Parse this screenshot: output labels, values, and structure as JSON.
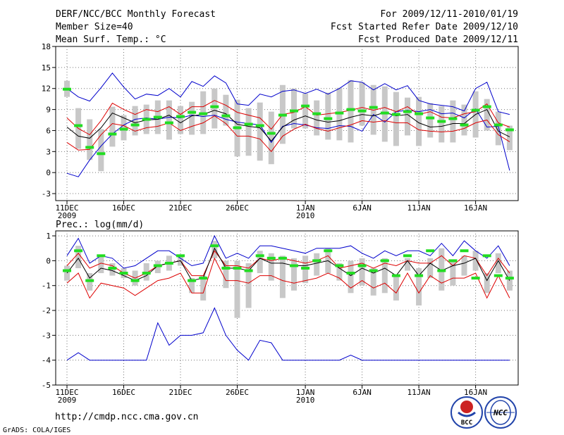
{
  "header": {
    "title": "DERF/NCC/BCC Monthly Forecast",
    "member": "Member Size=40",
    "variable1": "Mean Surf. Temp.: °C",
    "period": "For 2009/12/11-2010/01/19",
    "started": "Fcst Started Refer Date 2009/12/10",
    "produced": "Fcst Produced Date 2009/12/11"
  },
  "footer": {
    "url": "http://cmdp.ncc.cma.gov.cn",
    "credit": "GrADS: COLA/IGES",
    "logo_bcc": "BCC",
    "logo_ncc": "NCC"
  },
  "colors": {
    "box": "#c8c8c8",
    "median": "#22dd22",
    "mean": "#000000",
    "sd": "#dd0000",
    "extreme": "#0000cc",
    "grid": "#777777"
  },
  "chart_data": [
    {
      "type": "line",
      "title": "Mean Surf. Temp.: °C",
      "xlabel": "",
      "ylabel": "°C",
      "ylim": [
        -4,
        18
      ],
      "yticks": [
        -3,
        0,
        3,
        6,
        9,
        12,
        15,
        18
      ],
      "x_days": [
        1,
        2,
        3,
        4,
        5,
        6,
        7,
        8,
        9,
        10,
        11,
        12,
        13,
        14,
        15,
        16,
        17,
        18,
        19,
        20,
        21,
        22,
        23,
        24,
        25,
        26,
        27,
        28,
        29,
        30,
        31,
        32,
        33,
        34,
        35,
        36,
        37,
        38,
        39,
        40
      ],
      "xticks": [
        {
          "day": 1,
          "label": "11DEC",
          "label2": "2009"
        },
        {
          "day": 6,
          "label": "16DEC"
        },
        {
          "day": 11,
          "label": "21DEC"
        },
        {
          "day": 16,
          "label": "26DEC"
        },
        {
          "day": 22,
          "label": "1JAN",
          "label2": "2010"
        },
        {
          "day": 27,
          "label": "6JAN"
        },
        {
          "day": 32,
          "label": "11JAN"
        },
        {
          "day": 37,
          "label": "16JAN"
        }
      ],
      "series": [
        {
          "name": "max",
          "values": [
            -0.1,
            -0.6,
            1.8,
            3.8,
            5.5,
            6.8,
            7.6,
            7.8,
            7.6,
            7.9,
            7.8,
            8.2,
            8.0,
            8.2,
            7.6,
            7.2,
            7.0,
            6.8,
            4.3,
            6.6,
            7.0,
            6.8,
            6.4,
            6.3,
            6.7,
            6.6,
            5.9,
            8.3,
            7.2,
            8.7,
            8.9,
            8.7,
            9.0,
            8.4,
            8.5,
            7.8,
            9.1,
            6.5,
            6.6,
            0.3
          ]
        },
        {
          "name": "mean+sd",
          "values": [
            7.8,
            6.3,
            5.4,
            7.4,
            9.9,
            9.0,
            8.3,
            9.0,
            8.7,
            9.4,
            8.3,
            9.4,
            9.4,
            10.3,
            9.6,
            8.6,
            8.2,
            7.8,
            6.2,
            8.3,
            8.6,
            9.4,
            8.2,
            8.4,
            8.6,
            8.9,
            9.3,
            8.9,
            9.3,
            8.7,
            9.4,
            8.3,
            8.7,
            7.9,
            7.8,
            8.4,
            8.7,
            9.8,
            7.1,
            6.5
          ]
        },
        {
          "name": "mean",
          "values": [
            6.5,
            5.2,
            4.9,
            6.4,
            8.5,
            7.8,
            7.1,
            7.5,
            7.6,
            8.2,
            7.1,
            8.1,
            8.3,
            8.9,
            8.4,
            6.9,
            6.6,
            6.4,
            4.5,
            6.5,
            7.5,
            8.1,
            7.5,
            7.2,
            7.4,
            7.9,
            8.3,
            8.1,
            8.6,
            8.1,
            8.3,
            7.1,
            6.5,
            6.6,
            7.0,
            7.0,
            8.3,
            9.0,
            5.9,
            5.1
          ]
        },
        {
          "name": "mean-sd",
          "values": [
            4.3,
            3.2,
            3.3,
            5.4,
            7.0,
            6.7,
            5.9,
            6.4,
            6.6,
            7.1,
            6.0,
            6.6,
            7.1,
            8.1,
            7.0,
            5.2,
            5.2,
            4.8,
            3.0,
            5.2,
            6.2,
            6.9,
            6.3,
            5.9,
            6.4,
            6.8,
            7.4,
            7.2,
            7.4,
            7.1,
            7.1,
            6.1,
            5.9,
            5.8,
            5.9,
            6.3,
            7.1,
            7.5,
            5.4,
            4.4
          ]
        },
        {
          "name": "min",
          "values": [
            12.0,
            10.8,
            10.2,
            12.1,
            14.2,
            12.2,
            10.5,
            11.2,
            11.0,
            12.0,
            10.8,
            13.0,
            12.3,
            13.8,
            12.8,
            9.8,
            9.6,
            11.2,
            10.8,
            11.6,
            11.8,
            11.3,
            11.9,
            11.2,
            12.0,
            13.1,
            12.9,
            11.8,
            12.7,
            11.8,
            12.4,
            10.3,
            9.8,
            9.6,
            9.4,
            8.8,
            12.0,
            12.9,
            8.7,
            8.3
          ]
        }
      ],
      "series_notes": "max/min drawn as blue envelope lines (values approximate)",
      "boxes_low": [
        10.8,
        3.4,
        1.8,
        0.2,
        3.7,
        4.6,
        5.3,
        5.5,
        5.5,
        4.7,
        5.5,
        5.4,
        5.5,
        6.3,
        6.7,
        2.3,
        2.4,
        1.7,
        1.2,
        4.1,
        6.3,
        6.3,
        5.3,
        4.7,
        4.6,
        4.3,
        6.7,
        5.4,
        4.4,
        3.8,
        5.3,
        3.8,
        5.0,
        4.3,
        4.3,
        5.3,
        5.0,
        6.0,
        3.9,
        3.2
      ],
      "boxes_high": [
        13.1,
        9.2,
        7.6,
        6.2,
        9.4,
        8.2,
        9.5,
        9.7,
        10.3,
        10.3,
        9.5,
        10.1,
        11.6,
        12.0,
        11.1,
        10.4,
        9.2,
        10.0,
        8.7,
        12.5,
        12.0,
        11.3,
        10.3,
        11.4,
        12.1,
        13.2,
        12.9,
        12.5,
        12.3,
        11.5,
        10.7,
        10.8,
        9.9,
        9.5,
        10.3,
        9.7,
        11.6,
        10.5,
        8.7,
        6.7
      ],
      "medians": [
        11.9,
        6.7,
        3.6,
        2.7,
        5.5,
        6.2,
        6.8,
        7.6,
        7.9,
        7.1,
        8.0,
        8.6,
        8.4,
        9.4,
        8.1,
        6.4,
        6.9,
        6.7,
        5.6,
        8.2,
        8.8,
        9.5,
        8.4,
        7.7,
        8.5,
        9.0,
        8.8,
        9.3,
        8.5,
        8.3,
        8.7,
        8.4,
        7.8,
        7.3,
        7.7,
        6.8,
        8.9,
        9.4,
        6.8,
        6.1
      ]
    },
    {
      "type": "line",
      "title": "Prec.: log(mm/d)",
      "xlabel": "",
      "ylabel": "log(mm/d)",
      "ylim": [
        -5,
        1.2
      ],
      "yticks": [
        -5,
        -4,
        -3,
        -2,
        -1,
        0,
        1
      ],
      "x_days": [
        1,
        2,
        3,
        4,
        5,
        6,
        7,
        8,
        9,
        10,
        11,
        12,
        13,
        14,
        15,
        16,
        17,
        18,
        19,
        20,
        21,
        22,
        23,
        24,
        25,
        26,
        27,
        28,
        29,
        30,
        31,
        32,
        33,
        34,
        35,
        36,
        37,
        38,
        39,
        40
      ],
      "xticks": [
        {
          "day": 1,
          "label": "11DEC",
          "label2": "2009"
        },
        {
          "day": 6,
          "label": "16DEC"
        },
        {
          "day": 11,
          "label": "21DEC"
        },
        {
          "day": 16,
          "label": "26DEC"
        },
        {
          "day": 22,
          "label": "1JAN",
          "label2": "2010"
        },
        {
          "day": 27,
          "label": "6JAN"
        },
        {
          "day": 32,
          "label": "11JAN"
        },
        {
          "day": 37,
          "label": "16JAN"
        }
      ],
      "series": [
        {
          "name": "max",
          "values": [
            0.2,
            0.9,
            -0.1,
            0.2,
            0.1,
            -0.3,
            -0.2,
            0.1,
            0.4,
            0.4,
            0.1,
            -0.2,
            -0.1,
            1.0,
            0.1,
            0.3,
            0.1,
            0.6,
            0.6,
            0.5,
            0.4,
            0.3,
            0.5,
            0.5,
            0.5,
            0.6,
            0.3,
            0.1,
            0.4,
            0.2,
            0.4,
            0.4,
            0.2,
            0.7,
            0.2,
            0.8,
            0.4,
            0.1,
            0.6,
            -0.2
          ]
        },
        {
          "name": "mean+sd",
          "values": [
            -0.2,
            0.3,
            -0.3,
            -0.1,
            -0.2,
            -0.5,
            -0.7,
            -0.5,
            -0.2,
            -0.1,
            0.0,
            -0.6,
            -0.6,
            0.4,
            -0.2,
            -0.2,
            -0.3,
            0.1,
            0.0,
            0.1,
            0.0,
            -0.1,
            0.0,
            0.2,
            -0.3,
            -0.2,
            -0.1,
            -0.3,
            -0.1,
            -0.2,
            0.0,
            -0.1,
            -0.1,
            0.2,
            -0.2,
            0.2,
            0.1,
            -0.6,
            0.1,
            -0.5
          ]
        },
        {
          "name": "mean",
          "values": [
            -0.5,
            0.1,
            -0.7,
            -0.3,
            -0.4,
            -0.6,
            -0.8,
            -0.6,
            -0.2,
            -0.1,
            0.0,
            -0.8,
            -0.7,
            0.5,
            -0.3,
            -0.3,
            -0.4,
            0.1,
            -0.1,
            -0.1,
            -0.2,
            -0.2,
            -0.1,
            0.0,
            -0.3,
            -0.6,
            -0.3,
            -0.5,
            -0.3,
            -0.6,
            0.0,
            -0.6,
            -0.1,
            -0.4,
            -0.2,
            -0.1,
            0.1,
            -0.8,
            0.0,
            -0.8
          ]
        },
        {
          "name": "mean-sd",
          "values": [
            -0.9,
            -0.5,
            -1.5,
            -0.9,
            -1.0,
            -1.1,
            -1.4,
            -1.1,
            -0.8,
            -0.7,
            -0.5,
            -1.3,
            -1.3,
            0.1,
            -0.8,
            -0.8,
            -0.9,
            -0.6,
            -0.6,
            -0.8,
            -0.9,
            -0.8,
            -0.7,
            -0.5,
            -0.7,
            -1.1,
            -0.8,
            -1.1,
            -0.9,
            -1.3,
            -0.5,
            -1.3,
            -0.6,
            -0.9,
            -0.7,
            -0.7,
            -0.5,
            -1.5,
            -0.6,
            -1.5
          ]
        },
        {
          "name": "min",
          "values": [
            -4.0,
            -3.7,
            -4.0,
            -4.0,
            -4.0,
            -4.0,
            -4.0,
            -4.0,
            -2.5,
            -3.4,
            -3.0,
            -3.0,
            -2.9,
            -1.9,
            -3.0,
            -3.6,
            -4.0,
            -3.2,
            -3.3,
            -4.0,
            -4.0,
            -4.0,
            -4.0,
            -4.0,
            -4.0,
            -3.8,
            -4.0,
            -4.0,
            -4.0,
            -4.0,
            -4.0,
            -4.0,
            -4.0,
            -4.0,
            -4.0,
            -4.0,
            -4.0,
            -4.0,
            -4.0,
            -4.0
          ]
        }
      ],
      "boxes_low": [
        -0.8,
        -0.3,
        -1.2,
        -0.5,
        -0.6,
        -0.7,
        -1.0,
        -0.8,
        -0.5,
        -0.4,
        -0.2,
        -1.3,
        -1.6,
        0.1,
        -1.1,
        -2.3,
        -1.9,
        -0.5,
        -0.8,
        -1.5,
        -1.2,
        -0.9,
        -0.6,
        -0.5,
        -0.8,
        -1.3,
        -1.0,
        -1.4,
        -1.3,
        -1.6,
        -0.4,
        -1.8,
        -0.7,
        -1.2,
        -1.0,
        -0.6,
        -0.4,
        -1.3,
        -0.5,
        -1.2
      ],
      "boxes_high": [
        -0.2,
        0.6,
        -0.5,
        0.2,
        -0.1,
        -0.3,
        -0.4,
        -0.1,
        0.0,
        0.2,
        0.2,
        -0.7,
        -0.6,
        0.8,
        0.0,
        0.0,
        -0.1,
        0.4,
        0.3,
        0.2,
        0.1,
        0.2,
        0.3,
        0.5,
        -0.1,
        0.0,
        0.1,
        -0.3,
        0.1,
        -0.6,
        0.1,
        -0.3,
        0.1,
        0.5,
        0.0,
        0.2,
        0.4,
        -0.5,
        0.3,
        -0.4
      ],
      "medians": [
        -0.4,
        0.4,
        -0.8,
        0.2,
        -0.3,
        -0.5,
        -0.8,
        -0.5,
        -0.2,
        -0.1,
        0.2,
        -0.8,
        -0.7,
        0.6,
        -0.3,
        -0.3,
        -0.4,
        0.2,
        0.1,
        0.1,
        -0.2,
        -0.3,
        0.0,
        0.4,
        -0.2,
        -0.5,
        -0.2,
        -0.4,
        0.0,
        -0.6,
        0.2,
        -0.6,
        0.4,
        -0.4,
        0.0,
        0.4,
        -0.7,
        0.2,
        -0.6,
        -0.7
      ]
    }
  ]
}
